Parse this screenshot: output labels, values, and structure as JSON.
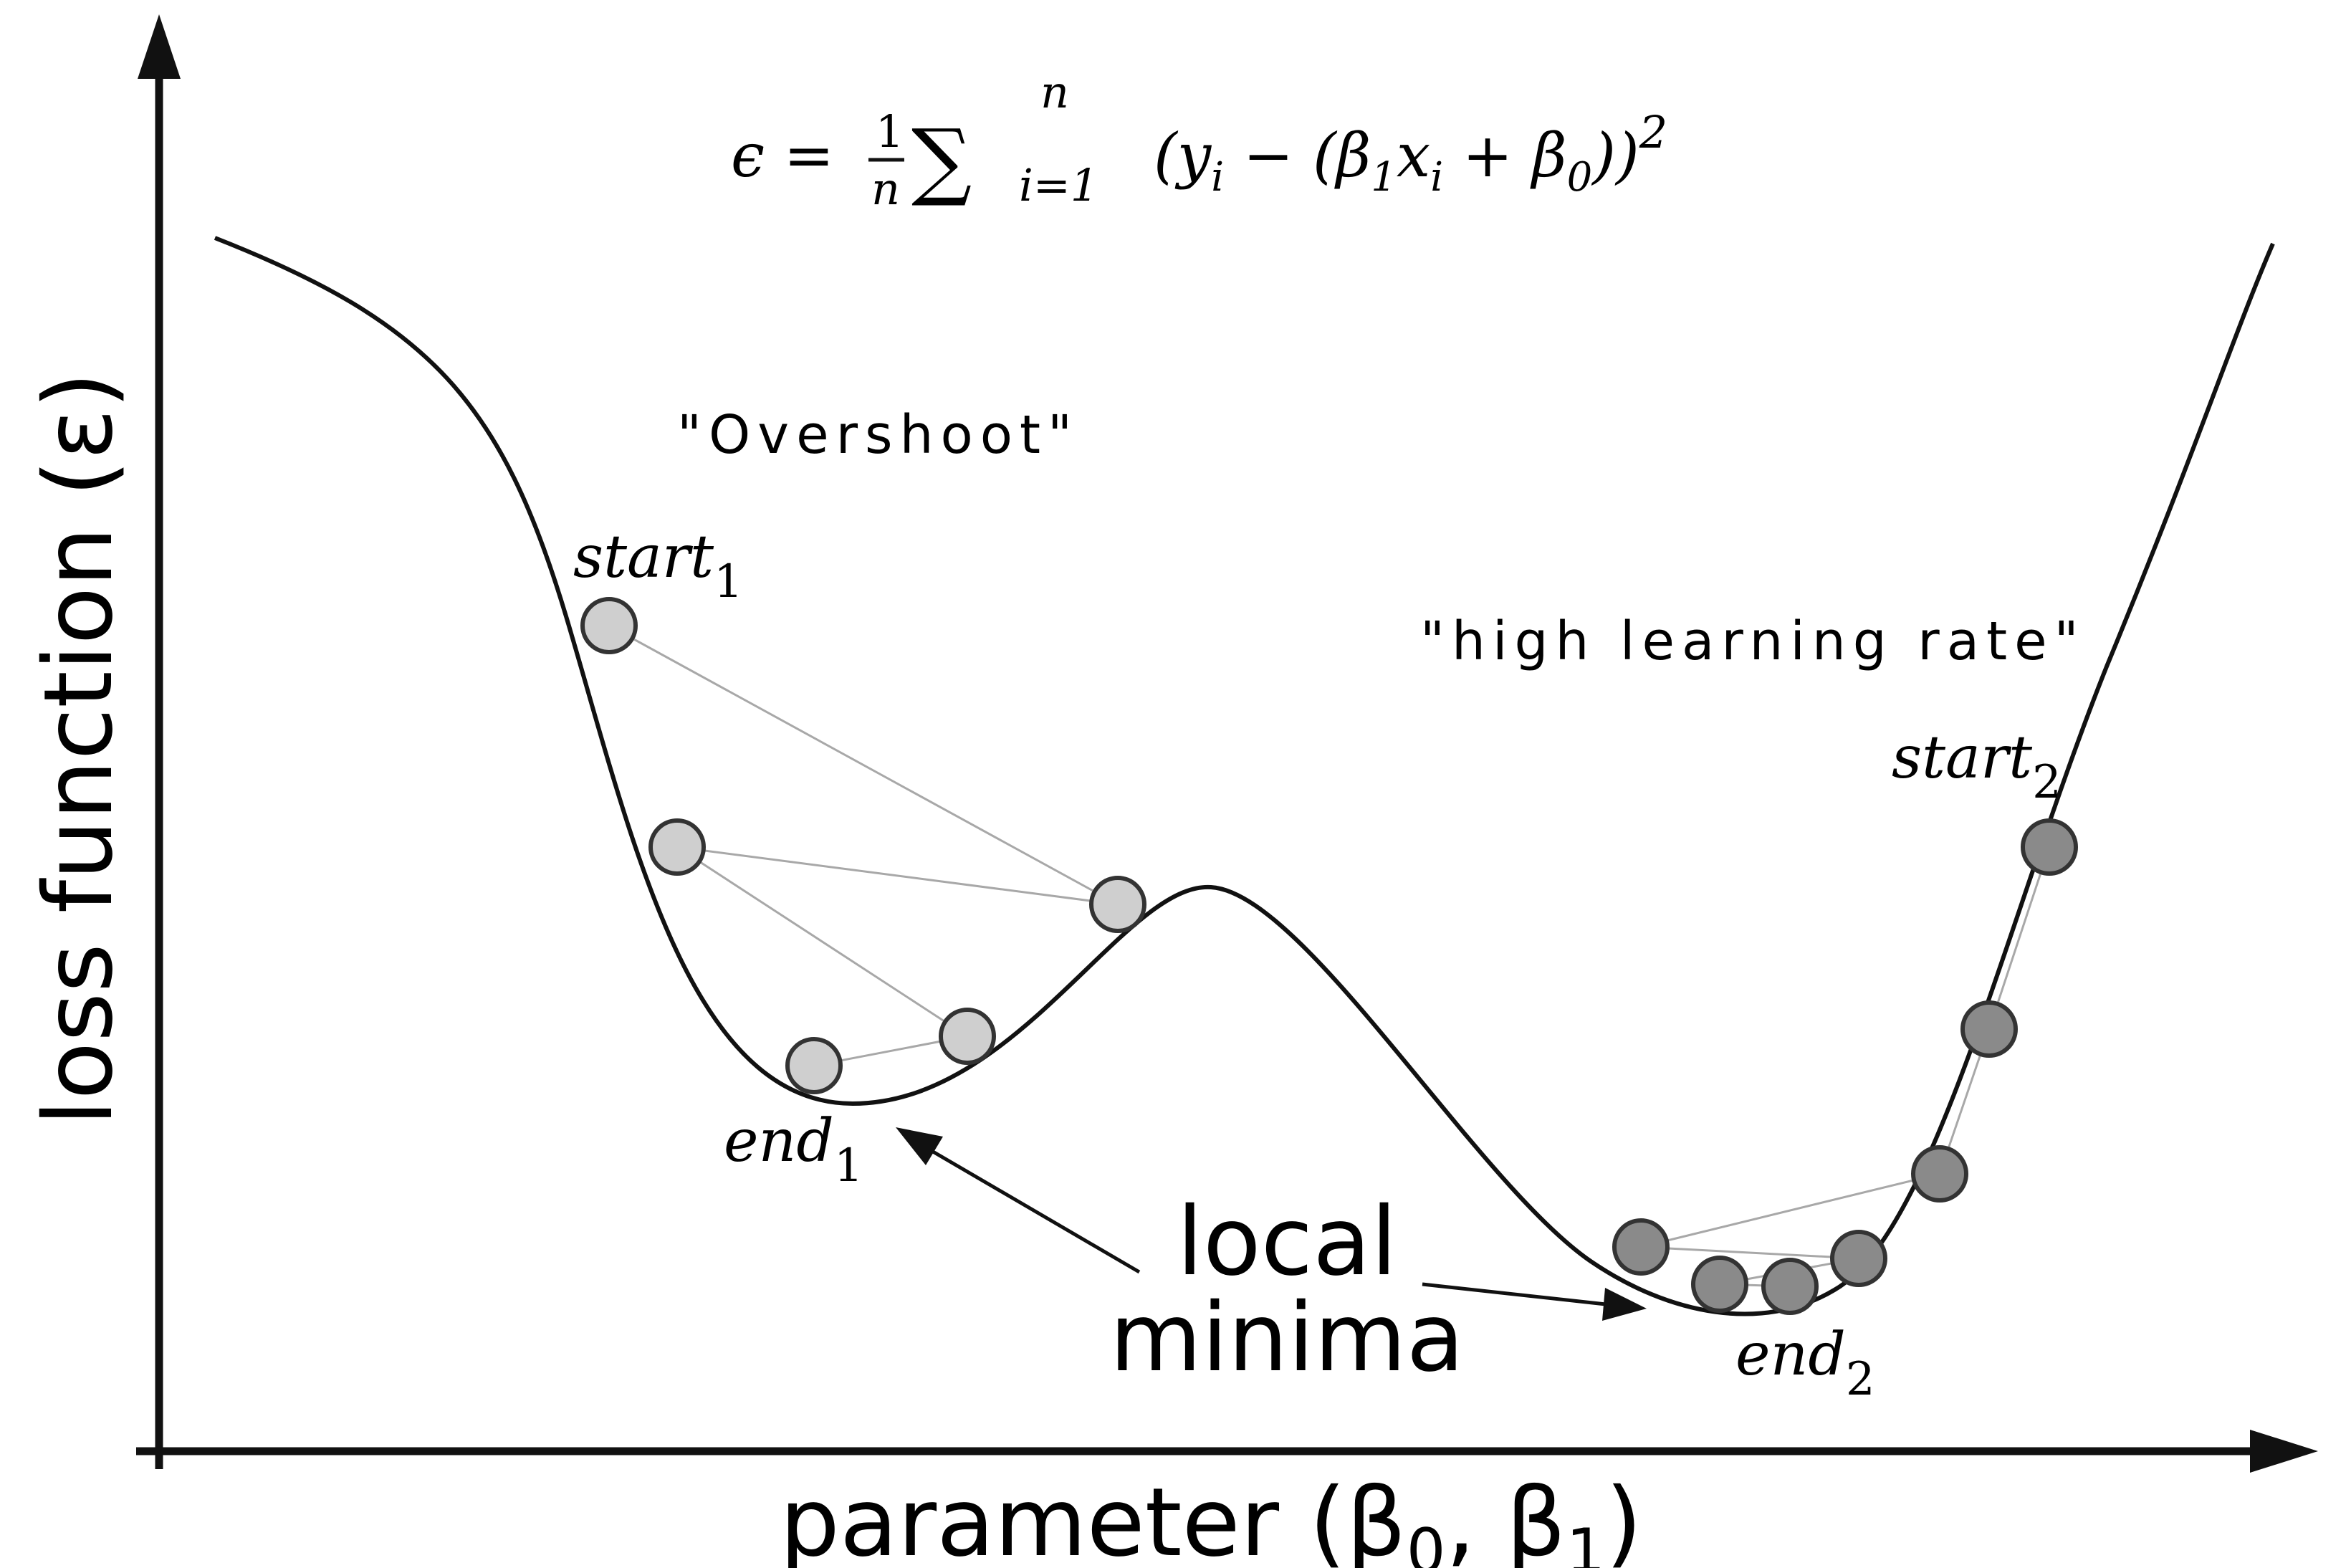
{
  "formula": {
    "lhs": "ϵ =",
    "frac_num": "1",
    "frac_den": "n",
    "sum": "∑",
    "sum_upper": "n",
    "sum_lower": "i=1",
    "body_a": "(y",
    "body_a_sub": "i",
    "body_b": " − (β",
    "body_b_sub": "1",
    "body_c": "x",
    "body_c_sub": "i",
    "body_d": " + β",
    "body_d_sub": "0",
    "body_e": "))",
    "power": "2"
  },
  "axes": {
    "y_label": "loss function (ε)",
    "x_label_main": "parameter (β",
    "x_label_sub0": "0",
    "x_label_mid": ", β",
    "x_label_sub1": "1",
    "x_label_end": ")"
  },
  "annotations": {
    "overshoot": "\"Overshoot\"",
    "high_lr": "\"high learning rate\"",
    "start1": "start",
    "start1_sub": "1",
    "end1": "end",
    "end1_sub": "1",
    "start2": "start",
    "start2_sub": "2",
    "end2": "end",
    "end2_sub": "2",
    "local_line1": "local",
    "local_line2": "minima"
  },
  "colors": {
    "light_point": "#cfcfcf",
    "dark_point": "#8a8a8a",
    "path_line": "#a8a8a8",
    "curve": "#111111"
  }
}
